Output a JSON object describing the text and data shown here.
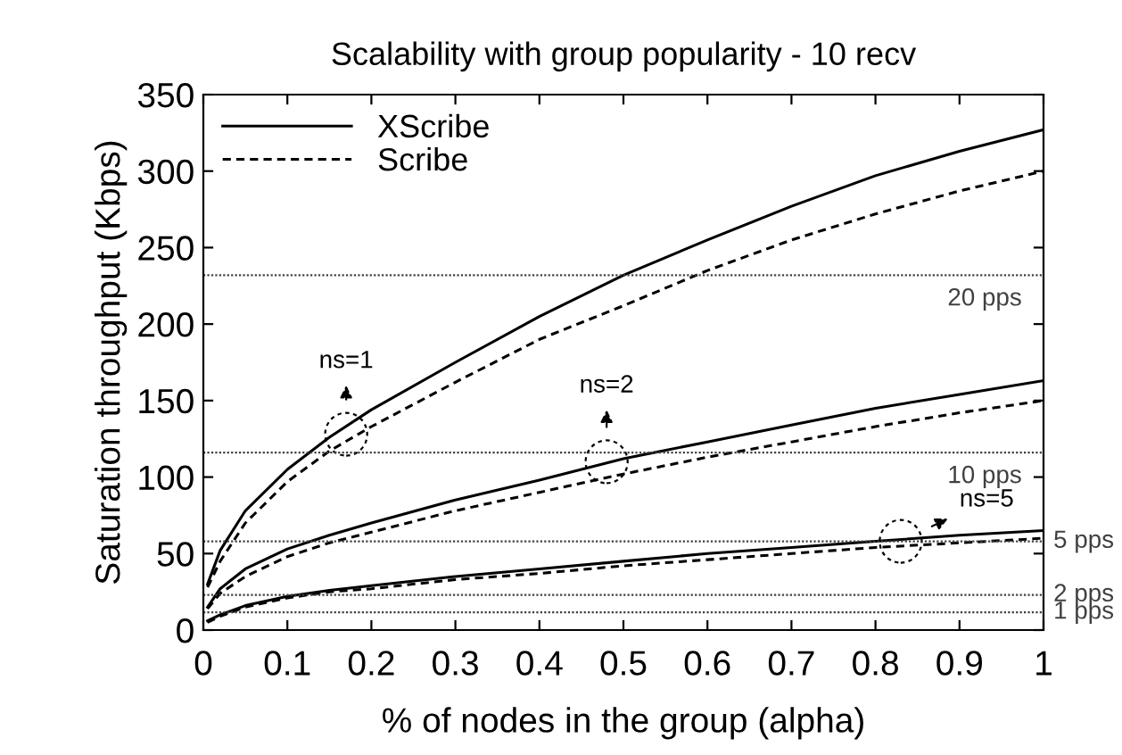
{
  "chart_data": {
    "type": "line",
    "title": "Scalability with group popularity - 10 recv",
    "xlabel": "% of nodes in the group (alpha)",
    "ylabel": "Saturation throughput (Kbps)",
    "x": [
      0.005,
      0.02,
      0.05,
      0.1,
      0.15,
      0.2,
      0.3,
      0.4,
      0.5,
      0.6,
      0.7,
      0.8,
      0.9,
      1.0
    ],
    "series": [
      {
        "name": "XScribe",
        "color": "#000000",
        "line_style": "solid",
        "values": [
          30,
          52,
          78,
          105,
          126,
          144,
          175,
          205,
          232,
          255,
          277,
          297,
          313,
          327
        ]
      },
      {
        "name": "Scribe",
        "color": "#000000",
        "line_style": "dashed",
        "values": [
          28,
          45,
          70,
          97,
          117,
          133,
          162,
          190,
          212,
          235,
          255,
          272,
          287,
          300
        ]
      },
      {
        "color": "#000000",
        "line_style": "solid",
        "values": [
          15,
          27,
          40,
          53,
          62,
          70,
          85,
          98,
          112,
          123,
          134,
          145,
          154,
          163
        ]
      },
      {
        "color": "#000000",
        "line_style": "dashed",
        "values": [
          14,
          24,
          35,
          48,
          57,
          64,
          78,
          90,
          102,
          113,
          123,
          133,
          142,
          150
        ]
      },
      {
        "color": "#000000",
        "line_style": "solid",
        "values": [
          6,
          10,
          16,
          22,
          26,
          29,
          35,
          40,
          45,
          50,
          54,
          58,
          62,
          65
        ]
      },
      {
        "color": "#000000",
        "line_style": "dashed",
        "values": [
          5,
          9,
          15,
          21,
          25,
          27,
          33,
          37,
          42,
          46,
          50,
          54,
          57,
          60
        ]
      }
    ],
    "xlim": [
      0,
      1
    ],
    "xticks": [
      0,
      0.1,
      0.2,
      0.3,
      0.4,
      0.5,
      0.6,
      0.7,
      0.8,
      0.9,
      1
    ],
    "ylim": [
      0,
      350
    ],
    "yticks": [
      0,
      50,
      100,
      150,
      200,
      250,
      300,
      350
    ],
    "ref_lines": [
      {
        "axis": "y",
        "value": 232,
        "label": "20 pps",
        "color": "#404040",
        "line_style": "dotted"
      },
      {
        "axis": "y",
        "value": 116,
        "label": "10 pps",
        "color": "#404040",
        "line_style": "dotted"
      },
      {
        "axis": "y",
        "value": 58,
        "label": "5 pps",
        "color": "#404040",
        "line_style": "dotted"
      },
      {
        "axis": "y",
        "value": 23,
        "label": "2 pps",
        "color": "#404040",
        "line_style": "dotted"
      },
      {
        "axis": "y",
        "value": 11.6,
        "label": "1 pps",
        "color": "#404040",
        "line_style": "dotted"
      }
    ],
    "annotations": [
      {
        "text": "ns=1",
        "x": 0.17,
        "y": 128
      },
      {
        "text": "ns=2",
        "x": 0.48,
        "y": 110
      },
      {
        "text": "ns=5",
        "x": 0.83,
        "y": 58
      }
    ],
    "grid": false,
    "legend": "top left",
    "marker": "none"
  }
}
